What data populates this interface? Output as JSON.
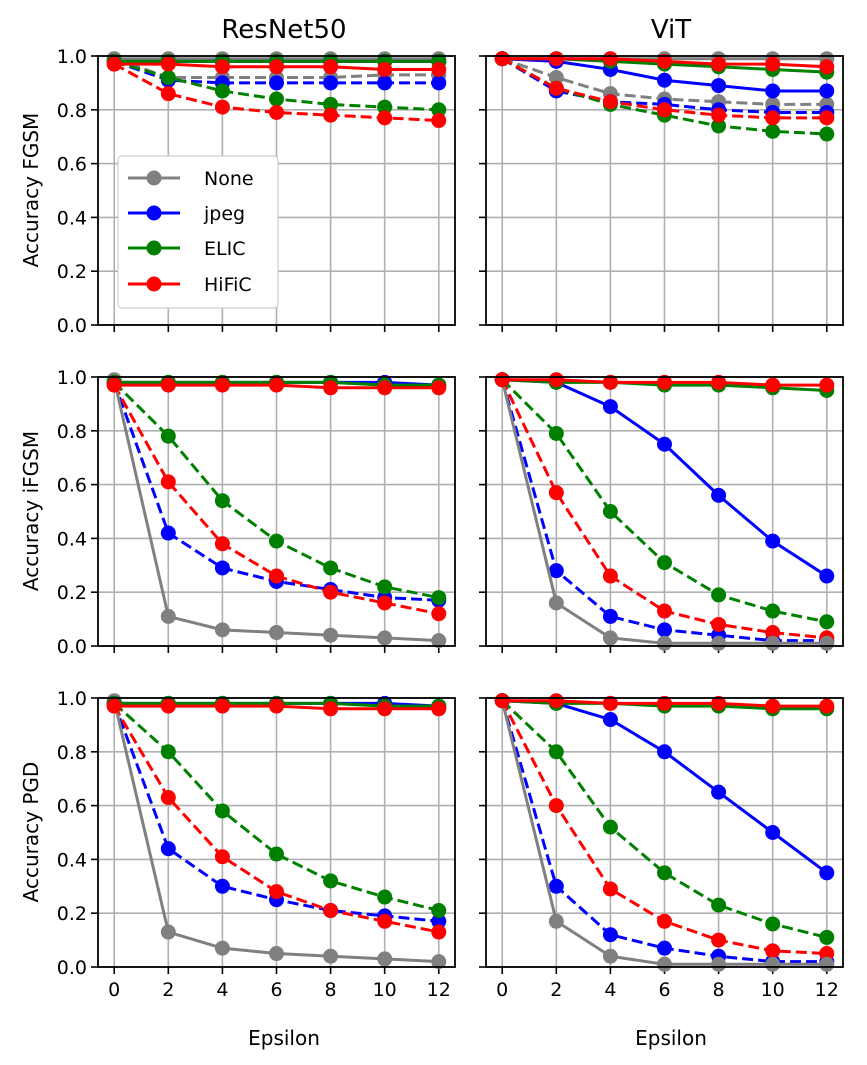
{
  "figure": {
    "column_titles": [
      "ResNet50",
      "ViT"
    ],
    "row_ylabels": [
      "Accuracy FGSM",
      "Accuracy iFGSM",
      "Accuracy PGD"
    ],
    "xlabel": "Epsilon"
  },
  "legend": {
    "placement": "inside top-left panel, left-center",
    "entries": [
      {
        "label": "None",
        "color": "#808080"
      },
      {
        "label": "jpeg",
        "color": "#0000ff"
      },
      {
        "label": "ELIC",
        "color": "#008000"
      },
      {
        "label": "HiFiC",
        "color": "#ff0000"
      }
    ]
  },
  "chart_data": [
    {
      "type": "line",
      "panel": "ResNet50 / FGSM",
      "title": "ResNet50",
      "ylabel": "Accuracy FGSM",
      "xlabel": "",
      "x": [
        0,
        2,
        4,
        6,
        8,
        10,
        12
      ],
      "xlim": [
        -0.6,
        12.6
      ],
      "ylim": [
        0.0,
        1.0
      ],
      "grid": true,
      "xticks": [
        "0",
        "2",
        "4",
        "6",
        "8",
        "10",
        "12"
      ],
      "yticks": [
        "0.0",
        "0.2",
        "0.4",
        "0.6",
        "0.8",
        "1.0"
      ],
      "series": [
        {
          "name": "None",
          "style": "solid",
          "color": "#808080",
          "values": [
            0.99,
            0.99,
            0.99,
            0.99,
            0.99,
            0.99,
            0.99
          ]
        },
        {
          "name": "None",
          "style": "dashed",
          "color": "#808080",
          "values": [
            0.99,
            0.92,
            0.92,
            0.92,
            0.92,
            0.93,
            0.93
          ]
        },
        {
          "name": "jpeg",
          "style": "solid",
          "color": "#0000ff",
          "values": [
            0.98,
            0.98,
            0.98,
            0.98,
            0.98,
            0.98,
            0.98
          ]
        },
        {
          "name": "jpeg",
          "style": "dashed",
          "color": "#0000ff",
          "values": [
            0.98,
            0.91,
            0.9,
            0.9,
            0.9,
            0.9,
            0.9
          ]
        },
        {
          "name": "ELIC",
          "style": "solid",
          "color": "#008000",
          "values": [
            0.98,
            0.98,
            0.98,
            0.98,
            0.98,
            0.98,
            0.98
          ]
        },
        {
          "name": "ELIC",
          "style": "dashed",
          "color": "#008000",
          "values": [
            0.98,
            0.92,
            0.87,
            0.84,
            0.82,
            0.81,
            0.8
          ]
        },
        {
          "name": "HiFiC",
          "style": "solid",
          "color": "#ff0000",
          "values": [
            0.97,
            0.97,
            0.96,
            0.96,
            0.96,
            0.95,
            0.95
          ]
        },
        {
          "name": "HiFiC",
          "style": "dashed",
          "color": "#ff0000",
          "values": [
            0.97,
            0.86,
            0.81,
            0.79,
            0.78,
            0.77,
            0.76
          ]
        }
      ]
    },
    {
      "type": "line",
      "panel": "ViT / FGSM",
      "title": "ViT",
      "ylabel": "",
      "xlabel": "",
      "x": [
        0,
        2,
        4,
        6,
        8,
        10,
        12
      ],
      "xlim": [
        -0.6,
        12.6
      ],
      "ylim": [
        0.0,
        1.0
      ],
      "grid": true,
      "xticks": [
        "0",
        "2",
        "4",
        "6",
        "8",
        "10",
        "12"
      ],
      "yticks": [
        "0.0",
        "0.2",
        "0.4",
        "0.6",
        "0.8",
        "1.0"
      ],
      "series": [
        {
          "name": "None",
          "style": "solid",
          "color": "#808080",
          "values": [
            0.99,
            0.99,
            0.99,
            0.99,
            0.99,
            0.99,
            0.99
          ]
        },
        {
          "name": "None",
          "style": "dashed",
          "color": "#808080",
          "values": [
            0.99,
            0.92,
            0.86,
            0.84,
            0.83,
            0.82,
            0.82
          ]
        },
        {
          "name": "jpeg",
          "style": "solid",
          "color": "#0000ff",
          "values": [
            0.99,
            0.98,
            0.95,
            0.91,
            0.89,
            0.87,
            0.87
          ]
        },
        {
          "name": "jpeg",
          "style": "dashed",
          "color": "#0000ff",
          "values": [
            0.99,
            0.87,
            0.83,
            0.82,
            0.8,
            0.79,
            0.79
          ]
        },
        {
          "name": "ELIC",
          "style": "solid",
          "color": "#008000",
          "values": [
            0.99,
            0.99,
            0.98,
            0.97,
            0.96,
            0.95,
            0.94
          ]
        },
        {
          "name": "ELIC",
          "style": "dashed",
          "color": "#008000",
          "values": [
            0.99,
            0.88,
            0.82,
            0.78,
            0.74,
            0.72,
            0.71
          ]
        },
        {
          "name": "HiFiC",
          "style": "solid",
          "color": "#ff0000",
          "values": [
            0.99,
            0.99,
            0.99,
            0.98,
            0.97,
            0.97,
            0.96
          ]
        },
        {
          "name": "HiFiC",
          "style": "dashed",
          "color": "#ff0000",
          "values": [
            0.99,
            0.88,
            0.83,
            0.8,
            0.78,
            0.77,
            0.77
          ]
        }
      ]
    },
    {
      "type": "line",
      "panel": "ResNet50 / iFGSM",
      "title": "",
      "ylabel": "Accuracy iFGSM",
      "xlabel": "",
      "x": [
        0,
        2,
        4,
        6,
        8,
        10,
        12
      ],
      "xlim": [
        -0.6,
        12.6
      ],
      "ylim": [
        0.0,
        1.0
      ],
      "grid": true,
      "xticks": [
        "0",
        "2",
        "4",
        "6",
        "8",
        "10",
        "12"
      ],
      "yticks": [
        "0.0",
        "0.2",
        "0.4",
        "0.6",
        "0.8",
        "1.0"
      ],
      "series": [
        {
          "name": "None",
          "style": "solid",
          "color": "#808080",
          "values": [
            0.99,
            0.11,
            0.06,
            0.05,
            0.04,
            0.03,
            0.02
          ]
        },
        {
          "name": "jpeg",
          "style": "solid",
          "color": "#0000ff",
          "values": [
            0.98,
            0.98,
            0.98,
            0.98,
            0.98,
            0.98,
            0.97
          ]
        },
        {
          "name": "jpeg",
          "style": "dashed",
          "color": "#0000ff",
          "values": [
            0.98,
            0.42,
            0.29,
            0.24,
            0.21,
            0.18,
            0.17
          ]
        },
        {
          "name": "ELIC",
          "style": "solid",
          "color": "#008000",
          "values": [
            0.98,
            0.98,
            0.98,
            0.98,
            0.98,
            0.97,
            0.97
          ]
        },
        {
          "name": "ELIC",
          "style": "dashed",
          "color": "#008000",
          "values": [
            0.98,
            0.78,
            0.54,
            0.39,
            0.29,
            0.22,
            0.18
          ]
        },
        {
          "name": "HiFiC",
          "style": "solid",
          "color": "#ff0000",
          "values": [
            0.97,
            0.97,
            0.97,
            0.97,
            0.96,
            0.96,
            0.96
          ]
        },
        {
          "name": "HiFiC",
          "style": "dashed",
          "color": "#ff0000",
          "values": [
            0.97,
            0.61,
            0.38,
            0.26,
            0.2,
            0.16,
            0.12
          ]
        }
      ]
    },
    {
      "type": "line",
      "panel": "ViT / iFGSM",
      "title": "",
      "ylabel": "",
      "xlabel": "",
      "x": [
        0,
        2,
        4,
        6,
        8,
        10,
        12
      ],
      "xlim": [
        -0.6,
        12.6
      ],
      "ylim": [
        0.0,
        1.0
      ],
      "grid": true,
      "xticks": [
        "0",
        "2",
        "4",
        "6",
        "8",
        "10",
        "12"
      ],
      "yticks": [
        "0.0",
        "0.2",
        "0.4",
        "0.6",
        "0.8",
        "1.0"
      ],
      "series": [
        {
          "name": "None",
          "style": "solid",
          "color": "#808080",
          "values": [
            0.99,
            0.16,
            0.03,
            0.01,
            0.01,
            0.01,
            0.01
          ]
        },
        {
          "name": "jpeg",
          "style": "solid",
          "color": "#0000ff",
          "values": [
            0.99,
            0.98,
            0.89,
            0.75,
            0.56,
            0.39,
            0.26
          ]
        },
        {
          "name": "jpeg",
          "style": "dashed",
          "color": "#0000ff",
          "values": [
            0.99,
            0.28,
            0.11,
            0.06,
            0.04,
            0.02,
            0.02
          ]
        },
        {
          "name": "ELIC",
          "style": "solid",
          "color": "#008000",
          "values": [
            0.99,
            0.98,
            0.98,
            0.97,
            0.97,
            0.96,
            0.95
          ]
        },
        {
          "name": "ELIC",
          "style": "dashed",
          "color": "#008000",
          "values": [
            0.99,
            0.79,
            0.5,
            0.31,
            0.19,
            0.13,
            0.09
          ]
        },
        {
          "name": "HiFiC",
          "style": "solid",
          "color": "#ff0000",
          "values": [
            0.99,
            0.99,
            0.98,
            0.98,
            0.98,
            0.97,
            0.97
          ]
        },
        {
          "name": "HiFiC",
          "style": "dashed",
          "color": "#ff0000",
          "values": [
            0.99,
            0.57,
            0.26,
            0.13,
            0.08,
            0.05,
            0.03
          ]
        }
      ]
    },
    {
      "type": "line",
      "panel": "ResNet50 / PGD",
      "title": "",
      "ylabel": "Accuracy PGD",
      "xlabel": "Epsilon",
      "x": [
        0,
        2,
        4,
        6,
        8,
        10,
        12
      ],
      "xlim": [
        -0.6,
        12.6
      ],
      "ylim": [
        0.0,
        1.0
      ],
      "grid": true,
      "xticks": [
        "0",
        "2",
        "4",
        "6",
        "8",
        "10",
        "12"
      ],
      "yticks": [
        "0.0",
        "0.2",
        "0.4",
        "0.6",
        "0.8",
        "1.0"
      ],
      "series": [
        {
          "name": "None",
          "style": "solid",
          "color": "#808080",
          "values": [
            0.99,
            0.13,
            0.07,
            0.05,
            0.04,
            0.03,
            0.02
          ]
        },
        {
          "name": "jpeg",
          "style": "solid",
          "color": "#0000ff",
          "values": [
            0.98,
            0.98,
            0.98,
            0.98,
            0.98,
            0.98,
            0.97
          ]
        },
        {
          "name": "jpeg",
          "style": "dashed",
          "color": "#0000ff",
          "values": [
            0.98,
            0.44,
            0.3,
            0.25,
            0.21,
            0.19,
            0.17
          ]
        },
        {
          "name": "ELIC",
          "style": "solid",
          "color": "#008000",
          "values": [
            0.98,
            0.98,
            0.98,
            0.98,
            0.98,
            0.97,
            0.97
          ]
        },
        {
          "name": "ELIC",
          "style": "dashed",
          "color": "#008000",
          "values": [
            0.98,
            0.8,
            0.58,
            0.42,
            0.32,
            0.26,
            0.21
          ]
        },
        {
          "name": "HiFiC",
          "style": "solid",
          "color": "#ff0000",
          "values": [
            0.97,
            0.97,
            0.97,
            0.97,
            0.96,
            0.96,
            0.96
          ]
        },
        {
          "name": "HiFiC",
          "style": "dashed",
          "color": "#ff0000",
          "values": [
            0.97,
            0.63,
            0.41,
            0.28,
            0.21,
            0.17,
            0.13
          ]
        }
      ]
    },
    {
      "type": "line",
      "panel": "ViT / PGD",
      "title": "",
      "ylabel": "",
      "xlabel": "Epsilon",
      "x": [
        0,
        2,
        4,
        6,
        8,
        10,
        12
      ],
      "xlim": [
        -0.6,
        12.6
      ],
      "ylim": [
        0.0,
        1.0
      ],
      "grid": true,
      "xticks": [
        "0",
        "2",
        "4",
        "6",
        "8",
        "10",
        "12"
      ],
      "yticks": [
        "0.0",
        "0.2",
        "0.4",
        "0.6",
        "0.8",
        "1.0"
      ],
      "series": [
        {
          "name": "None",
          "style": "solid",
          "color": "#808080",
          "values": [
            0.99,
            0.17,
            0.04,
            0.01,
            0.01,
            0.01,
            0.01
          ]
        },
        {
          "name": "jpeg",
          "style": "solid",
          "color": "#0000ff",
          "values": [
            0.99,
            0.98,
            0.92,
            0.8,
            0.65,
            0.5,
            0.35
          ]
        },
        {
          "name": "jpeg",
          "style": "dashed",
          "color": "#0000ff",
          "values": [
            0.99,
            0.3,
            0.12,
            0.07,
            0.04,
            0.02,
            0.02
          ]
        },
        {
          "name": "ELIC",
          "style": "solid",
          "color": "#008000",
          "values": [
            0.99,
            0.98,
            0.98,
            0.97,
            0.97,
            0.96,
            0.96
          ]
        },
        {
          "name": "ELIC",
          "style": "dashed",
          "color": "#008000",
          "values": [
            0.99,
            0.8,
            0.52,
            0.35,
            0.23,
            0.16,
            0.11
          ]
        },
        {
          "name": "HiFiC",
          "style": "solid",
          "color": "#ff0000",
          "values": [
            0.99,
            0.99,
            0.98,
            0.98,
            0.98,
            0.97,
            0.97
          ]
        },
        {
          "name": "HiFiC",
          "style": "dashed",
          "color": "#ff0000",
          "values": [
            0.99,
            0.6,
            0.29,
            0.17,
            0.1,
            0.06,
            0.05
          ]
        }
      ]
    }
  ]
}
